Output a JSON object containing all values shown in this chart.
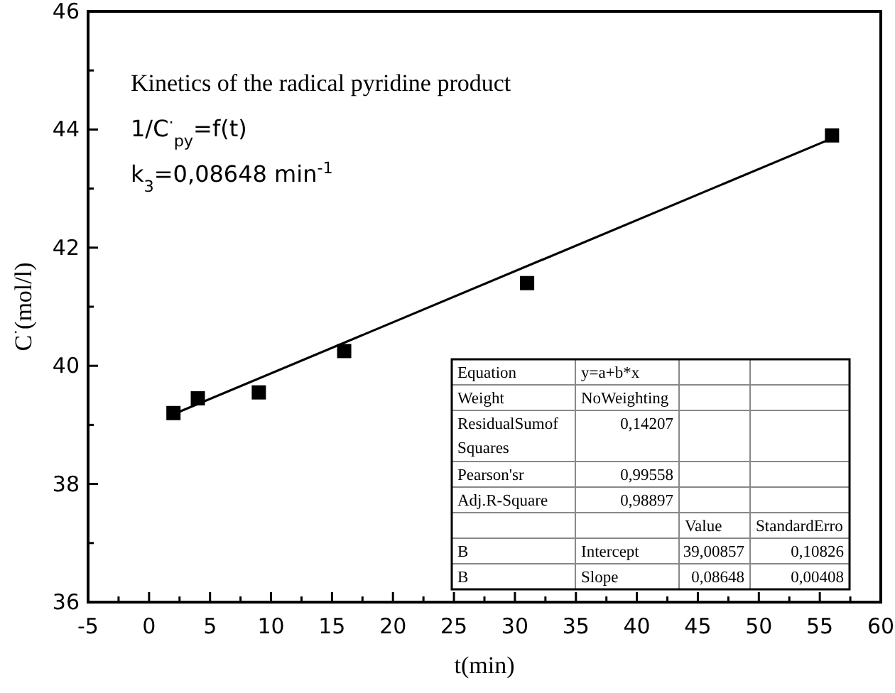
{
  "chart_data": {
    "type": "scatter",
    "title": "Kinetics of the radical pyridine product",
    "subtitle": "1/C$^{·}$$_{py}$=f(t)",
    "xlabel": "t(min)",
    "ylabel": "C$^{·}$(mol/l)",
    "annotations": [
      "k$_{3}$=0,08648 min$^{-1}$",
      "Equation",
      "y=a+b*x",
      "Weight",
      "NoWeighting",
      "ResidualSumof Squares",
      "0,14207",
      "Pearson'sr",
      "0,99558",
      "Adj.R-Square",
      "0,98897",
      "Value",
      "StandardErro",
      "B",
      "Intercept",
      "39,00857",
      "0,10826",
      "B",
      "Slope",
      "0,08648",
      "0,00408"
    ],
    "series": [
      {
        "x": [
          2,
          4,
          9,
          16,
          31,
          56
        ],
        "values": [
          39.2,
          39.45,
          39.55,
          40.25,
          41.4,
          43.9
        ],
        "color": "#000000",
        "marker": "square"
      },
      {
        "type": "line",
        "x": [
          2,
          56
        ],
        "values": [
          39.18,
          43.85
        ],
        "color": "#000000",
        "line_style": "solid",
        "marker": "none"
      }
    ],
    "xlim": [
      -5,
      60
    ],
    "xticks": [
      -5,
      0,
      5,
      10,
      15,
      20,
      25,
      30,
      35,
      40,
      45,
      50,
      55,
      60
    ],
    "ylim": [
      36,
      46
    ],
    "yticks": [
      36,
      38,
      40,
      42,
      44,
      46
    ],
    "grid": false
  }
}
